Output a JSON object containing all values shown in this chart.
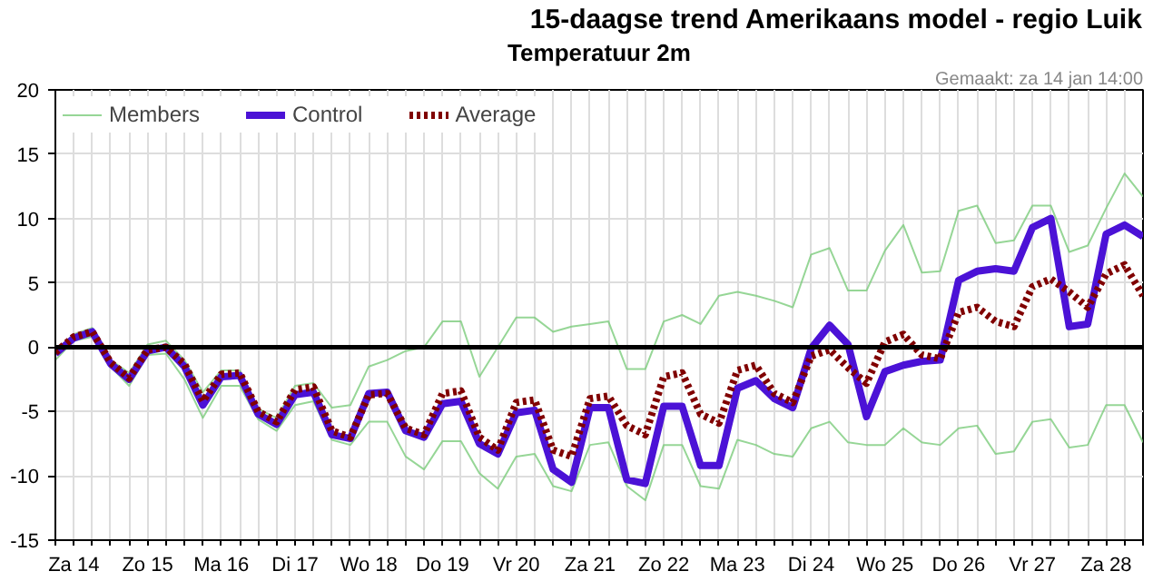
{
  "chart_data": {
    "type": "line",
    "title": "15-daagse trend Amerikaans model - regio Luik",
    "subtitle": "Temperatuur 2m",
    "annotations": [
      "Gemaakt: za 14 jan 14:00"
    ],
    "categories": [
      null,
      "Za 14",
      null,
      null,
      null,
      "Zo 15",
      null,
      null,
      null,
      "Ma 16",
      null,
      null,
      null,
      "Di 17",
      null,
      null,
      null,
      "Wo 18",
      null,
      null,
      null,
      "Do 19",
      null,
      null,
      null,
      "Vr 20",
      null,
      null,
      null,
      "Za 21",
      null,
      null,
      null,
      "Zo 22",
      null,
      null,
      null,
      "Ma 23",
      null,
      null,
      null,
      "Di 24",
      null,
      null,
      null,
      "Wo 25",
      null,
      null,
      null,
      "Do 26",
      null,
      null,
      null,
      "Vr 27",
      null,
      null,
      null,
      "Za 28",
      null,
      null
    ],
    "series": [
      {
        "name": "Members",
        "color": "#7ccc7c",
        "line_style": "solid",
        "values": [
          -0.3,
          1.0,
          1.5,
          -1.0,
          -2.0,
          0.2,
          0.5,
          -1.0,
          -3.5,
          -1.8,
          -1.8,
          -4.8,
          -5.5,
          -3.0,
          -2.8,
          -4.7,
          -4.5,
          -1.5,
          -1.0,
          -0.3,
          0.0,
          2.0,
          2.0,
          -2.3,
          0.0,
          2.3,
          2.3,
          1.2,
          1.6,
          1.8,
          2.0,
          -1.7,
          -1.7,
          2.0,
          2.5,
          1.8,
          4.0,
          4.3,
          4.0,
          3.6,
          3.1,
          7.2,
          7.7,
          4.4,
          4.4,
          7.5,
          9.5,
          5.8,
          5.9,
          10.6,
          11.0,
          8.1,
          8.3,
          11.0,
          11.0,
          7.4,
          7.9,
          10.8,
          13.5,
          11.7
        ]
      },
      {
        "color": "#7ccc7c",
        "line_style": "solid",
        "values": [
          -1.0,
          0.5,
          0.8,
          -1.5,
          -3.0,
          -0.6,
          -0.5,
          -2.5,
          -5.5,
          -3.0,
          -3.0,
          -5.6,
          -6.5,
          -4.5,
          -4.2,
          -7.2,
          -7.6,
          -5.8,
          -5.8,
          -8.5,
          -9.5,
          -7.3,
          -7.3,
          -9.8,
          -11.0,
          -8.5,
          -8.3,
          -10.8,
          -11.2,
          -7.6,
          -7.4,
          -10.8,
          -11.9,
          -7.6,
          -7.6,
          -10.8,
          -11.0,
          -7.2,
          -7.6,
          -8.3,
          -8.5,
          -6.3,
          -5.8,
          -7.4,
          -7.6,
          -7.6,
          -6.3,
          -7.4,
          -7.6,
          -6.3,
          -6.1,
          -8.3,
          -8.1,
          -5.8,
          -5.6,
          -7.8,
          -7.6,
          -4.5,
          -4.5,
          -7.4
        ]
      },
      {
        "name": "Control",
        "color": "#4b12d6",
        "line_style": "solid",
        "values": [
          -0.5,
          0.7,
          1.2,
          -1.3,
          -2.5,
          -0.3,
          0.0,
          -1.5,
          -4.5,
          -2.3,
          -2.2,
          -5.2,
          -6.0,
          -3.7,
          -3.5,
          -6.8,
          -7.1,
          -3.6,
          -3.5,
          -6.5,
          -7.0,
          -4.4,
          -4.2,
          -7.5,
          -8.3,
          -5.1,
          -4.9,
          -9.5,
          -10.5,
          -4.7,
          -4.7,
          -10.3,
          -10.6,
          -4.6,
          -4.6,
          -9.2,
          -9.2,
          -3.2,
          -2.6,
          -4.0,
          -4.7,
          -0.1,
          1.7,
          0.2,
          -5.4,
          -1.9,
          -1.4,
          -1.1,
          -1.0,
          5.2,
          5.9,
          6.1,
          5.9,
          9.3,
          10.0,
          1.6,
          1.8,
          8.8,
          9.5,
          8.6
        ]
      },
      {
        "name": "Average",
        "color": "#800000",
        "line_style": "dotted",
        "values": [
          -0.4,
          0.8,
          1.2,
          -1.2,
          -2.4,
          -0.2,
          0.0,
          -1.3,
          -4.2,
          -2.1,
          -2.0,
          -5.0,
          -5.8,
          -3.3,
          -3.1,
          -6.5,
          -7.0,
          -3.7,
          -3.6,
          -6.3,
          -6.8,
          -3.6,
          -3.4,
          -7.0,
          -8.0,
          -4.3,
          -4.1,
          -8.0,
          -8.5,
          -4.0,
          -3.8,
          -6.1,
          -6.8,
          -2.3,
          -2.0,
          -5.2,
          -5.9,
          -1.8,
          -1.4,
          -3.6,
          -4.3,
          -0.7,
          -0.2,
          -1.6,
          -2.8,
          0.4,
          1.0,
          -0.6,
          -0.9,
          2.7,
          3.1,
          2.0,
          1.6,
          4.7,
          5.3,
          4.3,
          3.1,
          5.7,
          6.4,
          4.0
        ]
      }
    ],
    "ylim": [
      -15,
      20
    ],
    "yticks": [
      -15,
      -10,
      -5,
      0,
      5,
      10,
      15,
      20
    ],
    "ref_lines": [
      {
        "axis": "y",
        "value": 0,
        "color": "#000000"
      }
    ],
    "grid": true,
    "legend": "top left",
    "marker": "none"
  }
}
